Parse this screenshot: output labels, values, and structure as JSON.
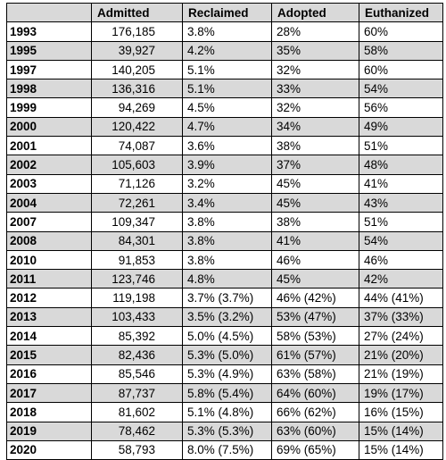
{
  "table": {
    "headers": [
      "",
      "Admitted",
      "Reclaimed",
      "Adopted",
      "Euthanized"
    ],
    "rows": [
      {
        "year": "1993",
        "admitted": "176,185",
        "reclaimed": "3.8%",
        "adopted": "28%",
        "euthanized": "60%"
      },
      {
        "year": "1995",
        "admitted": "39,927",
        "reclaimed": "4.2%",
        "adopted": "35%",
        "euthanized": "58%"
      },
      {
        "year": "1997",
        "admitted": "140,205",
        "reclaimed": "5.1%",
        "adopted": "32%",
        "euthanized": "60%"
      },
      {
        "year": "1998",
        "admitted": "136,316",
        "reclaimed": "5.1%",
        "adopted": "33%",
        "euthanized": "54%"
      },
      {
        "year": "1999",
        "admitted": "94,269",
        "reclaimed": "4.5%",
        "adopted": "32%",
        "euthanized": "56%"
      },
      {
        "year": "2000",
        "admitted": "120,422",
        "reclaimed": "4.7%",
        "adopted": "34%",
        "euthanized": "49%"
      },
      {
        "year": "2001",
        "admitted": "74,087",
        "reclaimed": "3.6%",
        "adopted": "38%",
        "euthanized": "51%"
      },
      {
        "year": "2002",
        "admitted": "105,603",
        "reclaimed": "3.9%",
        "adopted": "37%",
        "euthanized": "48%"
      },
      {
        "year": "2003",
        "admitted": "71,126",
        "reclaimed": "3.2%",
        "adopted": "45%",
        "euthanized": "41%"
      },
      {
        "year": "2004",
        "admitted": "72,261",
        "reclaimed": "3.4%",
        "adopted": "45%",
        "euthanized": "43%"
      },
      {
        "year": "2007",
        "admitted": "109,347",
        "reclaimed": "3.8%",
        "adopted": "38%",
        "euthanized": "51%"
      },
      {
        "year": "2008",
        "admitted": "84,301",
        "reclaimed": "3.8%",
        "adopted": "41%",
        "euthanized": "54%"
      },
      {
        "year": "2010",
        "admitted": "91,853",
        "reclaimed": "3.8%",
        "adopted": "46%",
        "euthanized": "46%"
      },
      {
        "year": "2011",
        "admitted": "123,746",
        "reclaimed": "4.8%",
        "adopted": "45%",
        "euthanized": "42%"
      },
      {
        "year": "2012",
        "admitted": "119,198",
        "reclaimed": "3.7% (3.7%)",
        "adopted": "46% (42%)",
        "euthanized": "44% (41%)"
      },
      {
        "year": "2013",
        "admitted": "103,433",
        "reclaimed": "3.5% (3.2%)",
        "adopted": "53% (47%)",
        "euthanized": "37% (33%)"
      },
      {
        "year": "2014",
        "admitted": "85,392",
        "reclaimed": "5.0% (4.5%)",
        "adopted": "58% (53%)",
        "euthanized": "27% (24%)"
      },
      {
        "year": "2015",
        "admitted": "82,436",
        "reclaimed": "5.3% (5.0%)",
        "adopted": "61% (57%)",
        "euthanized": "21% (20%)"
      },
      {
        "year": "2016",
        "admitted": "85,546",
        "reclaimed": "5.3% (4.9%)",
        "adopted": "63% (58%)",
        "euthanized": "21% (19%)"
      },
      {
        "year": "2017",
        "admitted": "87,737",
        "reclaimed": "5.8% (5.4%)",
        "adopted": "64% (60%)",
        "euthanized": "19% (17%)"
      },
      {
        "year": "2018",
        "admitted": "81,602",
        "reclaimed": "5.1% (4.8%)",
        "adopted": "66% (62%)",
        "euthanized": "16% (15%)"
      },
      {
        "year": "2019",
        "admitted": "78,462",
        "reclaimed": "5.3% (5.3%)",
        "adopted": "63% (60%)",
        "euthanized": "15% (14%)"
      },
      {
        "year": "2020",
        "admitted": "58,793",
        "reclaimed": "8.0% (7.5%)",
        "adopted": "69% (65%)",
        "euthanized": "15% (14%)"
      }
    ]
  },
  "colors": {
    "shaded_row": "#d9d9d9",
    "border": "#000000",
    "background": "#ffffff"
  }
}
